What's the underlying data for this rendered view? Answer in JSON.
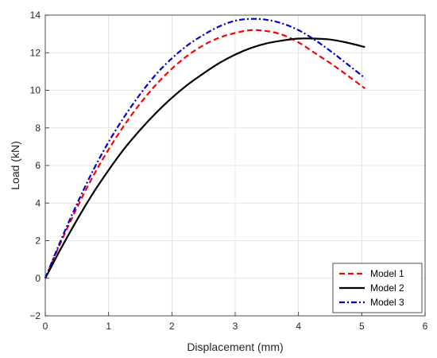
{
  "chart_data": {
    "type": "line",
    "title": "",
    "xlabel": "Displacement (mm)",
    "ylabel": "Load (kN)",
    "xlim": [
      0,
      6
    ],
    "ylim": [
      -2,
      14
    ],
    "xticks": [
      0,
      1,
      2,
      3,
      4,
      5,
      6
    ],
    "yticks": [
      -2,
      0,
      2,
      4,
      6,
      8,
      10,
      12,
      14
    ],
    "grid": true,
    "legend_position": "bottom-right",
    "series": [
      {
        "name": "Model 1",
        "color": "#ff0000",
        "style": "dashed",
        "x": [
          0,
          0.25,
          0.5,
          0.75,
          1.0,
          1.25,
          1.5,
          1.75,
          2.0,
          2.25,
          2.5,
          2.75,
          3.0,
          3.25,
          3.5,
          3.75,
          4.0,
          4.25,
          4.5,
          4.75,
          5.05
        ],
        "y": [
          0,
          1.95,
          3.75,
          5.4,
          6.85,
          8.15,
          9.3,
          10.3,
          11.15,
          11.85,
          12.4,
          12.8,
          13.05,
          13.2,
          13.15,
          12.95,
          12.55,
          12.0,
          11.45,
          10.85,
          10.1
        ]
      },
      {
        "name": "Model 2",
        "color": "#000000",
        "style": "solid",
        "x": [
          0,
          0.25,
          0.5,
          0.75,
          1.0,
          1.25,
          1.5,
          1.75,
          2.0,
          2.25,
          2.5,
          2.75,
          3.0,
          3.25,
          3.5,
          3.75,
          4.0,
          4.25,
          4.5,
          4.75,
          5.05
        ],
        "y": [
          0,
          1.6,
          3.1,
          4.5,
          5.75,
          6.9,
          7.9,
          8.8,
          9.6,
          10.3,
          10.9,
          11.45,
          11.9,
          12.25,
          12.5,
          12.65,
          12.75,
          12.75,
          12.7,
          12.55,
          12.3
        ]
      },
      {
        "name": "Model 3",
        "color": "#0000cc",
        "style": "dashdot",
        "x": [
          0,
          0.25,
          0.5,
          0.75,
          1.0,
          1.25,
          1.5,
          1.75,
          2.0,
          2.25,
          2.5,
          2.75,
          3.0,
          3.25,
          3.5,
          3.75,
          4.0,
          4.25,
          4.5,
          4.75,
          5.05
        ],
        "y": [
          0,
          2.05,
          3.95,
          5.7,
          7.25,
          8.6,
          9.8,
          10.85,
          11.7,
          12.4,
          12.95,
          13.4,
          13.7,
          13.8,
          13.75,
          13.55,
          13.2,
          12.7,
          12.1,
          11.45,
          10.65
        ]
      }
    ]
  }
}
